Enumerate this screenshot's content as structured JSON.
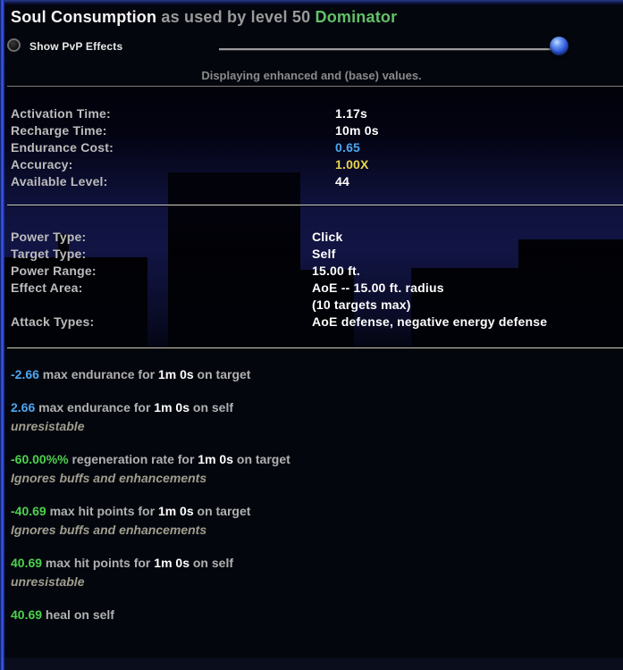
{
  "window": {
    "power_name": "Soul Consumption",
    "title_connector": "as used by level 50",
    "archetype": "Dominator",
    "hint": "Displaying enhanced and (base) values."
  },
  "pvp_toggle": {
    "label": "Show PvP Effects",
    "checked": false
  },
  "pvp_slider": {
    "position_percent": 98
  },
  "colors": {
    "value_blue": "#4da6f0",
    "value_green": "#4cd34c",
    "value_yellow": "#e8d44e",
    "archetype_green": "#63c168",
    "frame_blue": "#3a5cff"
  },
  "stats": [
    {
      "label": "Activation Time:",
      "value": "1.17s",
      "color": "white"
    },
    {
      "label": "Recharge Time:",
      "value": "10m 0s",
      "color": "white"
    },
    {
      "label": "Endurance Cost:",
      "value": "0.65",
      "color": "blue"
    },
    {
      "label": "Accuracy:",
      "value": "1.00X",
      "color": "yellow"
    },
    {
      "label": "Available Level:",
      "value": "44",
      "color": "white"
    }
  ],
  "power_info": [
    {
      "label": "Power Type:",
      "values": [
        "Click"
      ]
    },
    {
      "label": "Target Type:",
      "values": [
        "Self"
      ]
    },
    {
      "label": "Power Range:",
      "values": [
        "15.00 ft."
      ]
    },
    {
      "label": "Effect Area:",
      "values": [
        "AoE -- 15.00 ft. radius",
        "(10 targets max)"
      ]
    },
    {
      "label": "Attack Types:",
      "values": [
        "AoE defense, negative energy defense"
      ]
    }
  ],
  "effects": [
    {
      "segments": [
        {
          "t": "-2.66",
          "c": "blue"
        },
        {
          "t": " max endurance for ",
          "c": "gray"
        },
        {
          "t": "1m 0s",
          "c": "white"
        },
        {
          "t": " on target",
          "c": "gray"
        }
      ],
      "note": null
    },
    {
      "segments": [
        {
          "t": "2.66",
          "c": "blue"
        },
        {
          "t": " max endurance for ",
          "c": "gray"
        },
        {
          "t": "1m 0s",
          "c": "white"
        },
        {
          "t": " on self",
          "c": "gray"
        }
      ],
      "note": "unresistable"
    },
    {
      "segments": [
        {
          "t": "-60.00%%",
          "c": "green"
        },
        {
          "t": " regeneration rate for ",
          "c": "gray"
        },
        {
          "t": "1m 0s",
          "c": "white"
        },
        {
          "t": " on target",
          "c": "gray"
        }
      ],
      "note": "Ignores buffs and enhancements"
    },
    {
      "segments": [
        {
          "t": "-40.69",
          "c": "green"
        },
        {
          "t": " max hit points for ",
          "c": "gray"
        },
        {
          "t": "1m 0s",
          "c": "white"
        },
        {
          "t": " on target",
          "c": "gray"
        }
      ],
      "note": "Ignores buffs and enhancements"
    },
    {
      "segments": [
        {
          "t": "40.69",
          "c": "green"
        },
        {
          "t": " max hit points for ",
          "c": "gray"
        },
        {
          "t": "1m 0s",
          "c": "white"
        },
        {
          "t": " on self",
          "c": "gray"
        }
      ],
      "note": "unresistable"
    },
    {
      "segments": [
        {
          "t": "40.69",
          "c": "green"
        },
        {
          "t": " heal on self",
          "c": "gray"
        }
      ],
      "note": null
    }
  ]
}
